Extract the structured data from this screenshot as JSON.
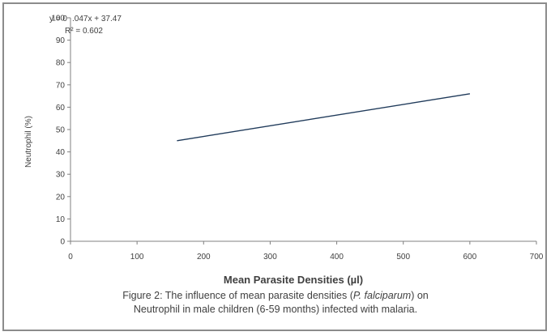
{
  "chart_data": {
    "type": "line",
    "title": "",
    "xlabel": "Mean Parasite Densities (µl)",
    "ylabel": "Neutrophil (%)",
    "xlim": [
      0,
      700
    ],
    "ylim": [
      0,
      100
    ],
    "x_ticks": [
      "0",
      "100",
      "200",
      "300",
      "400",
      "500",
      "600",
      "700"
    ],
    "y_ticks": [
      "0",
      "10",
      "20",
      "30",
      "40",
      "50",
      "60",
      "70",
      "80",
      "90",
      "100"
    ],
    "grid": false,
    "legend": "none",
    "series": [
      {
        "x": [
          160,
          600
        ],
        "y": [
          45,
          66
        ],
        "color": "#1f3a5a"
      }
    ],
    "annotations": {
      "equation_prefix": "y = 0",
      "equation_rest": ".047x + 37.47",
      "r_squared": "R² = 0.602"
    }
  },
  "caption": {
    "line1_before": "Figure 2: The influence of mean parasite densities (",
    "line1_italic": "P. falciparum",
    "line1_after": ") on",
    "line2": "Neutrophil in male children (6-59 months) infected with malaria."
  }
}
